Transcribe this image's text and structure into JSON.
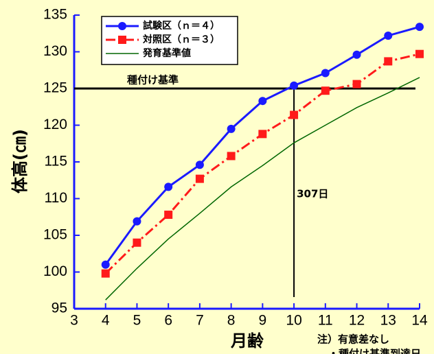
{
  "chart_data": {
    "type": "line",
    "y_label": "体高(㎝)",
    "x_label": "月齢",
    "x": [
      4,
      5,
      6,
      7,
      8,
      9,
      10,
      11,
      12,
      13,
      14
    ],
    "series": [
      {
        "name": "試験区（ｎ＝４）",
        "color": "#1a1aff",
        "marker": "circle",
        "dash": "solid",
        "width": 3,
        "values": [
          101,
          106.9,
          111.6,
          114.6,
          119.5,
          123.3,
          125.4,
          127.1,
          129.6,
          132.2,
          133.4
        ]
      },
      {
        "name": "対照区（ｎ＝３）",
        "color": "#ff1a1a",
        "marker": "square",
        "dash": "dashdot",
        "width": 3,
        "values": [
          99.8,
          104,
          107.8,
          112.7,
          115.8,
          118.8,
          121.4,
          124.7,
          125.6,
          128.7,
          129.7
        ]
      },
      {
        "name": "発育基準値",
        "color": "#006600",
        "marker": "none",
        "dash": "solid",
        "width": 1.5,
        "values": [
          96.2,
          100.5,
          104.5,
          108,
          111.6,
          114.5,
          117.6,
          120,
          122.4,
          124.4,
          126.5
        ]
      }
    ],
    "xlim": [
      3,
      14
    ],
    "xticks": [
      3,
      4,
      5,
      6,
      7,
      8,
      9,
      10,
      11,
      12,
      13,
      14
    ],
    "ylim": [
      95,
      135
    ],
    "yticks": [
      95,
      100,
      105,
      110,
      115,
      120,
      125,
      130,
      135
    ],
    "reference_line": {
      "value": 125,
      "label": "種付け基準"
    },
    "vertical_line": {
      "x": 10,
      "label": "307日"
    },
    "notes": [
      "注）有意差なし",
      "・種付け基準到達日"
    ]
  }
}
